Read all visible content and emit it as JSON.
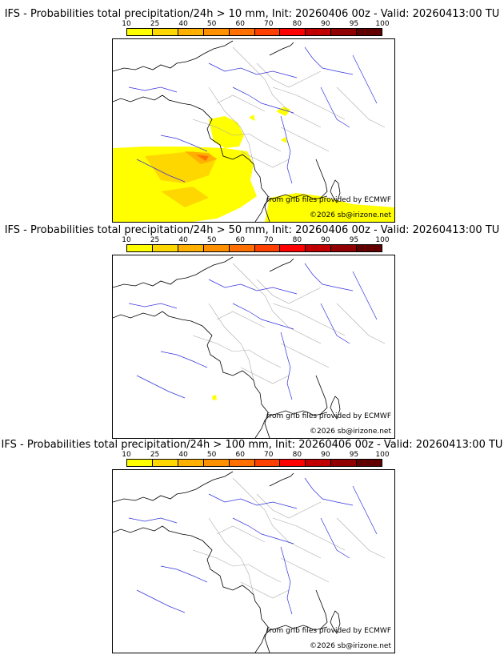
{
  "panels": [
    {
      "title": "IFS - Probabilities total precipitation/24h > 10 mm, Init: 20260406 00z - Valid: 20260413:00 TU",
      "source": "from grib files provided by ECMWF",
      "copyright": "©2026 sb@irizone.net",
      "precip_areas": "strong"
    },
    {
      "title": "IFS - Probabilities total precipitation/24h > 50 mm, Init: 20260406 00z - Valid: 20260413:00 TU",
      "source": "from grib files provided by ECMWF",
      "copyright": "©2026 sb@irizone.net",
      "precip_areas": "trace"
    },
    {
      "title": "IFS - Probabilities total precipitation/24h > 100 mm, Init: 20260406 00z - Valid: 20260413:00 TU",
      "source": "from grib files provided by ECMWF",
      "copyright": "©2026 sb@irizone.net",
      "precip_areas": "none"
    }
  ],
  "legend": {
    "ticks": [
      "10",
      "25",
      "40",
      "50",
      "60",
      "70",
      "80",
      "90",
      "95",
      "100"
    ],
    "colors": [
      "#ffff00",
      "#ffd700",
      "#ffb000",
      "#ff9000",
      "#ff7000",
      "#ff4000",
      "#ff0000",
      "#c00000",
      "#900000",
      "#600000"
    ]
  },
  "map_colors": {
    "coast": "#000000",
    "rivers": "#3333dd",
    "borders": "#aaaaaa"
  }
}
